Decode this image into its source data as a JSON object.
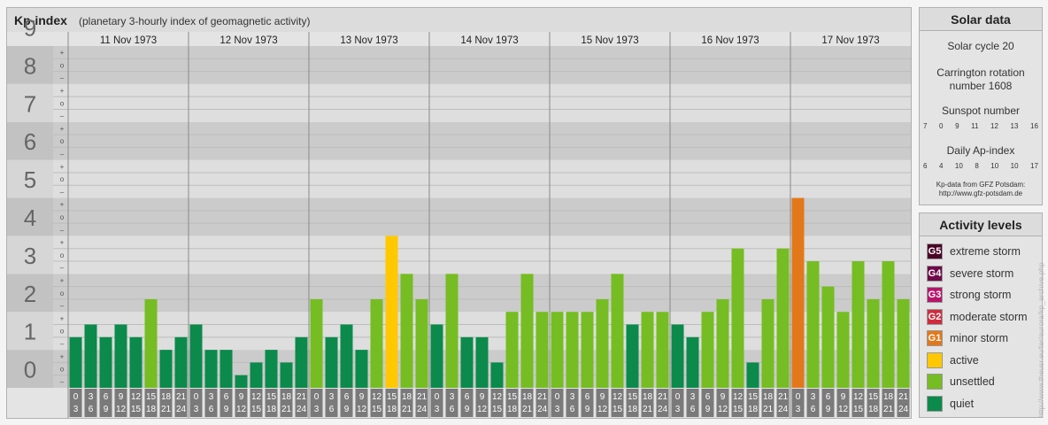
{
  "header": {
    "title": "Kp-index",
    "subtitle": "(planetary 3-hourly index of geomagnetic activity)"
  },
  "chart_data": {
    "type": "bar",
    "title": "Kp-index",
    "subtitle": "(planetary 3-hourly index of geomagnetic activity)",
    "ylim": [
      0,
      9
    ],
    "y_ticks": [
      "0",
      "1",
      "2",
      "3",
      "4",
      "5",
      "6",
      "7",
      "8",
      "9"
    ],
    "minor_labels": [
      "+",
      "o",
      "–"
    ],
    "days": [
      "11 Nov 1973",
      "12 Nov 1973",
      "13 Nov 1973",
      "14 Nov 1973",
      "15 Nov 1973",
      "16 Nov 1973",
      "17 Nov 1973"
    ],
    "slot_start": [
      "0",
      "3",
      "6",
      "9",
      "12",
      "15",
      "18",
      "21"
    ],
    "slot_end": [
      "3",
      "6",
      "9",
      "12",
      "15",
      "18",
      "21",
      "24"
    ],
    "series": [
      {
        "values": [
          [
            1.333,
            1.667,
            1.333,
            1.667,
            1.333,
            2.333,
            1.0,
            1.333
          ],
          [
            1.667,
            1.0,
            1.0,
            0.333,
            0.667,
            1.0,
            0.667,
            1.333
          ],
          [
            2.333,
            1.333,
            1.667,
            1.0,
            2.333,
            4.0,
            3.0,
            2.333
          ],
          [
            1.667,
            3.0,
            1.333,
            1.333,
            0.667,
            2.0,
            3.0,
            2.0
          ],
          [
            2.0,
            2.0,
            2.0,
            2.333,
            3.0,
            1.667,
            2.0,
            2.0
          ],
          [
            1.667,
            1.333,
            2.0,
            2.333,
            3.667,
            0.667,
            2.333,
            3.667
          ],
          [
            5.0,
            3.333,
            2.667,
            2.0,
            3.333,
            2.333,
            3.333,
            2.333
          ]
        ]
      }
    ],
    "grid": true,
    "colors": {
      "quiet": "#0b8a4b",
      "unsettled": "#75bd22",
      "active": "#ffc800",
      "minor_storm": "#e3781a",
      "moderate_storm": "#cf2d3e",
      "strong_storm": "#b5166a",
      "severe_storm": "#6e0a4a",
      "extreme_storm": "#4a0426"
    }
  },
  "solar_data": {
    "title": "Solar data",
    "solar_cycle": "Solar cycle 20",
    "carrington_line1": "Carrington rotation",
    "carrington_line2": "number 1608",
    "sunspot_title": "Sunspot number",
    "sunspot_values": [
      "7",
      "0",
      "9",
      "11",
      "12",
      "13",
      "16"
    ],
    "ap_title": "Daily Ap-index",
    "ap_values": [
      "6",
      "4",
      "10",
      "8",
      "10",
      "10",
      "17"
    ],
    "credit_line1": "Kp-data from GFZ Potsdam:",
    "credit_line2": "http://www.gfz-potsdam.de"
  },
  "activity_levels": {
    "title": "Activity levels",
    "items": [
      {
        "badge": "G5",
        "label": "extreme storm",
        "color": "#4a0426"
      },
      {
        "badge": "G4",
        "label": "severe storm",
        "color": "#6e0a4a"
      },
      {
        "badge": "G3",
        "label": "strong storm",
        "color": "#b5166a"
      },
      {
        "badge": "G2",
        "label": "moderate storm",
        "color": "#cf2d3e"
      },
      {
        "badge": "G1",
        "label": "minor storm",
        "color": "#e3781a"
      },
      {
        "badge": "",
        "label": "active",
        "color": "#ffc800"
      },
      {
        "badge": "",
        "label": "unsettled",
        "color": "#75bd22"
      },
      {
        "badge": "",
        "label": "quiet",
        "color": "#0b8a4b"
      }
    ]
  },
  "watermark": "http://www.theusr.eu/ter/aurora/kp_archive.php"
}
